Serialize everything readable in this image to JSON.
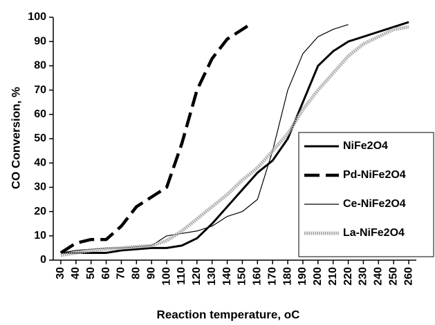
{
  "chart_data": {
    "type": "line",
    "x_label": "Reaction temperature, oC",
    "y_label": "CO Conversion, %",
    "xlim": [
      25,
      265
    ],
    "xticks": [
      30,
      40,
      50,
      60,
      70,
      80,
      90,
      100,
      110,
      120,
      130,
      140,
      150,
      160,
      170,
      180,
      190,
      200,
      210,
      220,
      230,
      240,
      250,
      260
    ],
    "ylim": [
      0,
      100
    ],
    "yticks": [
      0,
      10,
      20,
      30,
      40,
      50,
      60,
      70,
      80,
      90,
      100
    ],
    "legend": "right",
    "series": [
      {
        "name": "NiFe2O4",
        "color": "#000000",
        "line_style": "solid",
        "x": [
          30,
          40,
          50,
          60,
          70,
          80,
          90,
          100,
          110,
          120,
          130,
          140,
          150,
          160,
          170,
          180,
          190,
          200,
          210,
          220,
          240,
          260
        ],
        "values": [
          3,
          3,
          3,
          3,
          4,
          4.5,
          5,
          5,
          6,
          9,
          15,
          22,
          29,
          36,
          41,
          50,
          65,
          80,
          86,
          90,
          94,
          98
        ]
      },
      {
        "name": "Pd-NiFe2O4",
        "color": "#000000",
        "line_style": "dashed",
        "x": [
          30,
          40,
          50,
          60,
          70,
          80,
          90,
          100,
          110,
          120,
          130,
          140,
          150,
          155
        ],
        "values": [
          3,
          7,
          8.5,
          8.5,
          14,
          22,
          26,
          30,
          48,
          70,
          83,
          91,
          95,
          97
        ]
      },
      {
        "name": "Ce-NiFe2O4",
        "color": "#000000",
        "line_style": "thin",
        "x": [
          30,
          40,
          50,
          60,
          70,
          80,
          90,
          100,
          110,
          120,
          130,
          140,
          150,
          160,
          170,
          180,
          190,
          200,
          210,
          220
        ],
        "values": [
          3,
          4,
          4.5,
          5,
          5,
          5.5,
          6,
          10,
          11,
          12,
          14,
          18,
          20,
          25,
          45,
          70,
          85,
          92,
          95,
          97
        ]
      },
      {
        "name": "La-NiFe2O4",
        "color": "#b0b0b0",
        "line_style": "dotted",
        "x": [
          30,
          40,
          50,
          60,
          70,
          80,
          90,
          100,
          110,
          120,
          130,
          140,
          150,
          160,
          170,
          180,
          190,
          200,
          210,
          220,
          230,
          240,
          250,
          260
        ],
        "values": [
          2,
          3,
          4,
          4.5,
          5,
          5.5,
          6,
          8,
          12,
          17,
          22,
          27,
          33,
          38,
          45,
          52,
          62,
          70,
          77,
          84,
          89,
          92,
          95,
          96
        ]
      }
    ]
  }
}
